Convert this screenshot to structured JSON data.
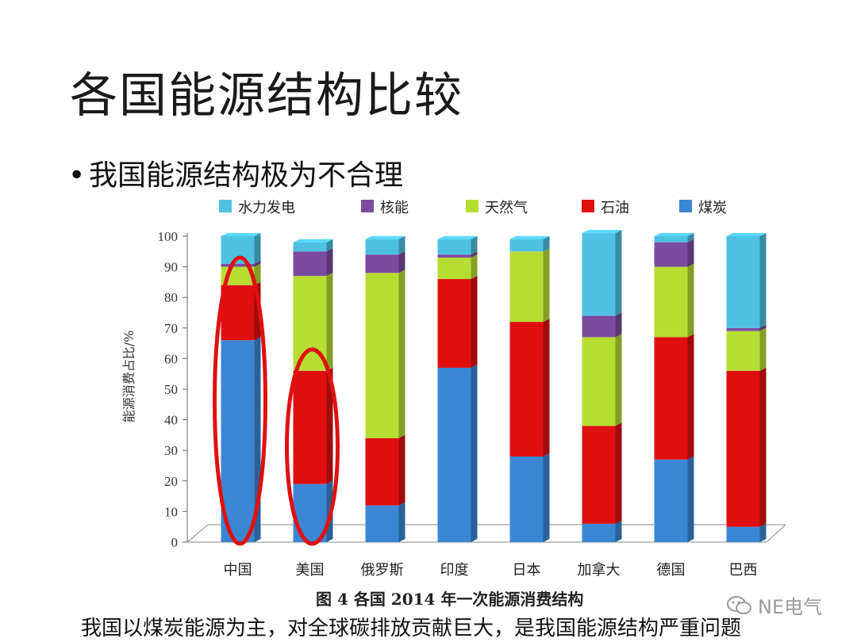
{
  "slide": {
    "title": "各国能源结构比较",
    "bullet": "我国能源结构极为不合理",
    "caption": "图 4 各国 2014 年一次能源消费结构",
    "note": "我国以煤炭能源为主，对全球碳排放贡献巨大，是我国能源结构严重问题",
    "watermark": "NE电气"
  },
  "chart_data": {
    "type": "bar",
    "stacked": true,
    "title": "",
    "ylabel": "能源消费占比/%",
    "xlabel": "",
    "ylim": [
      0,
      100
    ],
    "yticks": [
      0,
      10,
      20,
      30,
      40,
      50,
      60,
      70,
      80,
      90,
      100
    ],
    "categories": [
      "中国",
      "美国",
      "俄罗斯",
      "印度",
      "日本",
      "加拿大",
      "德国",
      "巴西"
    ],
    "legend_position": "top",
    "series": [
      {
        "name": "煤炭",
        "color": "#3b87d3",
        "values": [
          66,
          19,
          12,
          57,
          28,
          6,
          27,
          5
        ]
      },
      {
        "name": "石油",
        "color": "#e00f0f",
        "values": [
          18,
          37,
          22,
          29,
          44,
          32,
          40,
          51
        ]
      },
      {
        "name": "天然气",
        "color": "#b7dd33",
        "values": [
          6,
          31,
          54,
          7,
          23,
          29,
          23,
          13
        ]
      },
      {
        "name": "核能",
        "color": "#7a4c9f",
        "values": [
          1,
          8,
          6,
          1,
          0,
          7,
          8,
          1
        ]
      },
      {
        "name": "水力发电",
        "color": "#4ec1e3",
        "values": [
          9,
          3,
          5,
          5,
          4,
          27,
          2,
          30
        ]
      }
    ],
    "legend_order": [
      "水力发电",
      "核能",
      "天然气",
      "石油",
      "煤炭"
    ],
    "highlight_ellipses": [
      "中国",
      "美国"
    ],
    "highlight_color": "#e01010"
  }
}
